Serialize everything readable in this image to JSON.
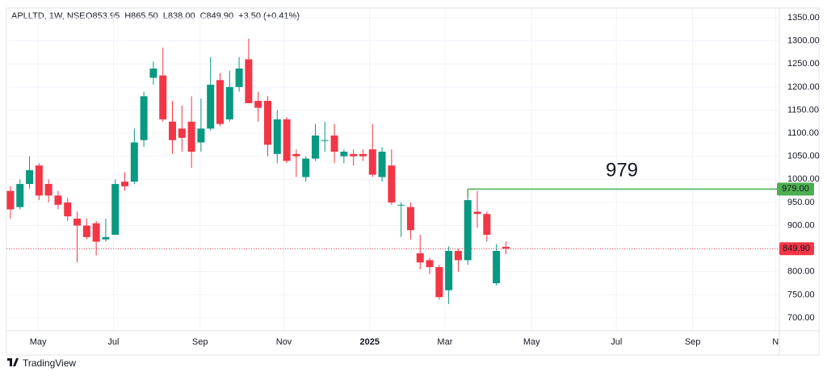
{
  "chart_data": {
    "type": "candlestick",
    "symbol": "APLLTD, 1W, NSE",
    "ohlc_legend": [
      "O853.95",
      "H865.50",
      "L838.00",
      "C849.90",
      "+3.50 (+0.41%)"
    ],
    "up_color": "#089981",
    "down_color": "#f23645",
    "x": [
      0,
      1,
      2,
      3,
      4,
      5,
      6,
      7,
      8,
      9,
      10,
      11,
      12,
      13,
      14,
      15,
      16,
      17,
      18,
      19,
      20,
      21,
      22,
      23,
      24,
      25,
      26,
      27,
      28,
      29,
      30,
      31,
      32,
      33,
      34,
      35,
      36,
      37,
      38,
      39,
      40,
      41,
      42,
      43,
      44,
      45,
      46,
      47,
      48,
      49,
      50,
      51,
      52
    ],
    "open": [
      975,
      940,
      990,
      1030,
      990,
      965,
      950,
      915,
      900,
      905,
      870,
      880,
      995,
      995,
      1085,
      1220,
      1225,
      1125,
      1110,
      1125,
      1080,
      1110,
      1215,
      1130,
      1200,
      1260,
      1170,
      1170,
      1055,
      1130,
      1055,
      1005,
      1045,
      1085,
      1095,
      1050,
      1055,
      1055,
      1065,
      1005,
      1030,
      945,
      940,
      840,
      825,
      810,
      760,
      845,
      825,
      930,
      925,
      775,
      853.95
    ],
    "high": [
      985,
      1000,
      1050,
      1035,
      1000,
      975,
      960,
      930,
      915,
      910,
      915,
      1000,
      1015,
      1110,
      1190,
      1255,
      1285,
      1170,
      1160,
      1180,
      1175,
      1265,
      1230,
      1235,
      1265,
      1305,
      1190,
      1180,
      1150,
      1135,
      1065,
      1050,
      1120,
      1125,
      1120,
      1065,
      1065,
      1065,
      1120,
      1070,
      1065,
      950,
      950,
      880,
      830,
      815,
      855,
      850,
      979,
      975,
      930,
      860,
      865.5
    ],
    "low": [
      915,
      935,
      980,
      955,
      950,
      935,
      910,
      820,
      870,
      835,
      865,
      880,
      975,
      990,
      1070,
      1205,
      1125,
      1055,
      1060,
      1025,
      1060,
      1105,
      1115,
      1125,
      1190,
      1165,
      1125,
      1050,
      1035,
      1035,
      1005,
      995,
      1040,
      1060,
      1035,
      1035,
      1030,
      1040,
      1005,
      995,
      945,
      875,
      870,
      805,
      795,
      740,
      730,
      800,
      815,
      895,
      865,
      770,
      838
    ],
    "close": [
      935,
      990,
      1020,
      965,
      965,
      945,
      920,
      900,
      875,
      865,
      875,
      990,
      985,
      1080,
      1180,
      1240,
      1130,
      1085,
      1090,
      1060,
      1110,
      1205,
      1120,
      1200,
      1240,
      1165,
      1155,
      1075,
      1130,
      1040,
      1050,
      1045,
      1095,
      1085,
      1060,
      1060,
      1050,
      1050,
      1010,
      1060,
      950,
      945,
      890,
      820,
      810,
      745,
      845,
      825,
      955,
      925,
      880,
      845,
      849.9
    ],
    "xlim": [
      -0.42,
      80.7
    ],
    "xticks": [
      {
        "value": 2.9,
        "label": "May"
      },
      {
        "value": 10.8,
        "label": "Jul"
      },
      {
        "value": 19.9,
        "label": "Sep"
      },
      {
        "value": 28.7,
        "label": "Nov"
      },
      {
        "value": 37.7,
        "label": "2025"
      },
      {
        "value": 45.6,
        "label": "Mar"
      },
      {
        "value": 54.7,
        "label": "May"
      },
      {
        "value": 63.6,
        "label": "Jul"
      },
      {
        "value": 71.6,
        "label": "Sep"
      },
      {
        "value": 80.3,
        "label": "N"
      }
    ],
    "ylim": [
      672,
      1371
    ],
    "yticks": [
      {
        "value": 700,
        "label": "700.00"
      },
      {
        "value": 750,
        "label": "750.00"
      },
      {
        "value": 800,
        "label": "800.00"
      },
      {
        "value": 850,
        "label": "850.00"
      },
      {
        "value": 900,
        "label": "900.00"
      },
      {
        "value": 950,
        "label": "950.00"
      },
      {
        "value": 1000,
        "label": "1000.00"
      },
      {
        "value": 1050,
        "label": "1050.00"
      },
      {
        "value": 1100,
        "label": "1100.00"
      },
      {
        "value": 1150,
        "label": "1150.00"
      },
      {
        "value": 1200,
        "label": "1200.00"
      },
      {
        "value": 1250,
        "label": "1250.00"
      },
      {
        "value": 1300,
        "label": "1300.00"
      },
      {
        "value": 1350,
        "label": "1350.00"
      }
    ],
    "grid": true,
    "last_price": {
      "value": 849.9,
      "label": "849.90"
    },
    "level": {
      "value": 979,
      "label": "979.00",
      "annotation": "979",
      "color": "#4caf50"
    }
  },
  "footer": {
    "brand": "TradingView"
  }
}
